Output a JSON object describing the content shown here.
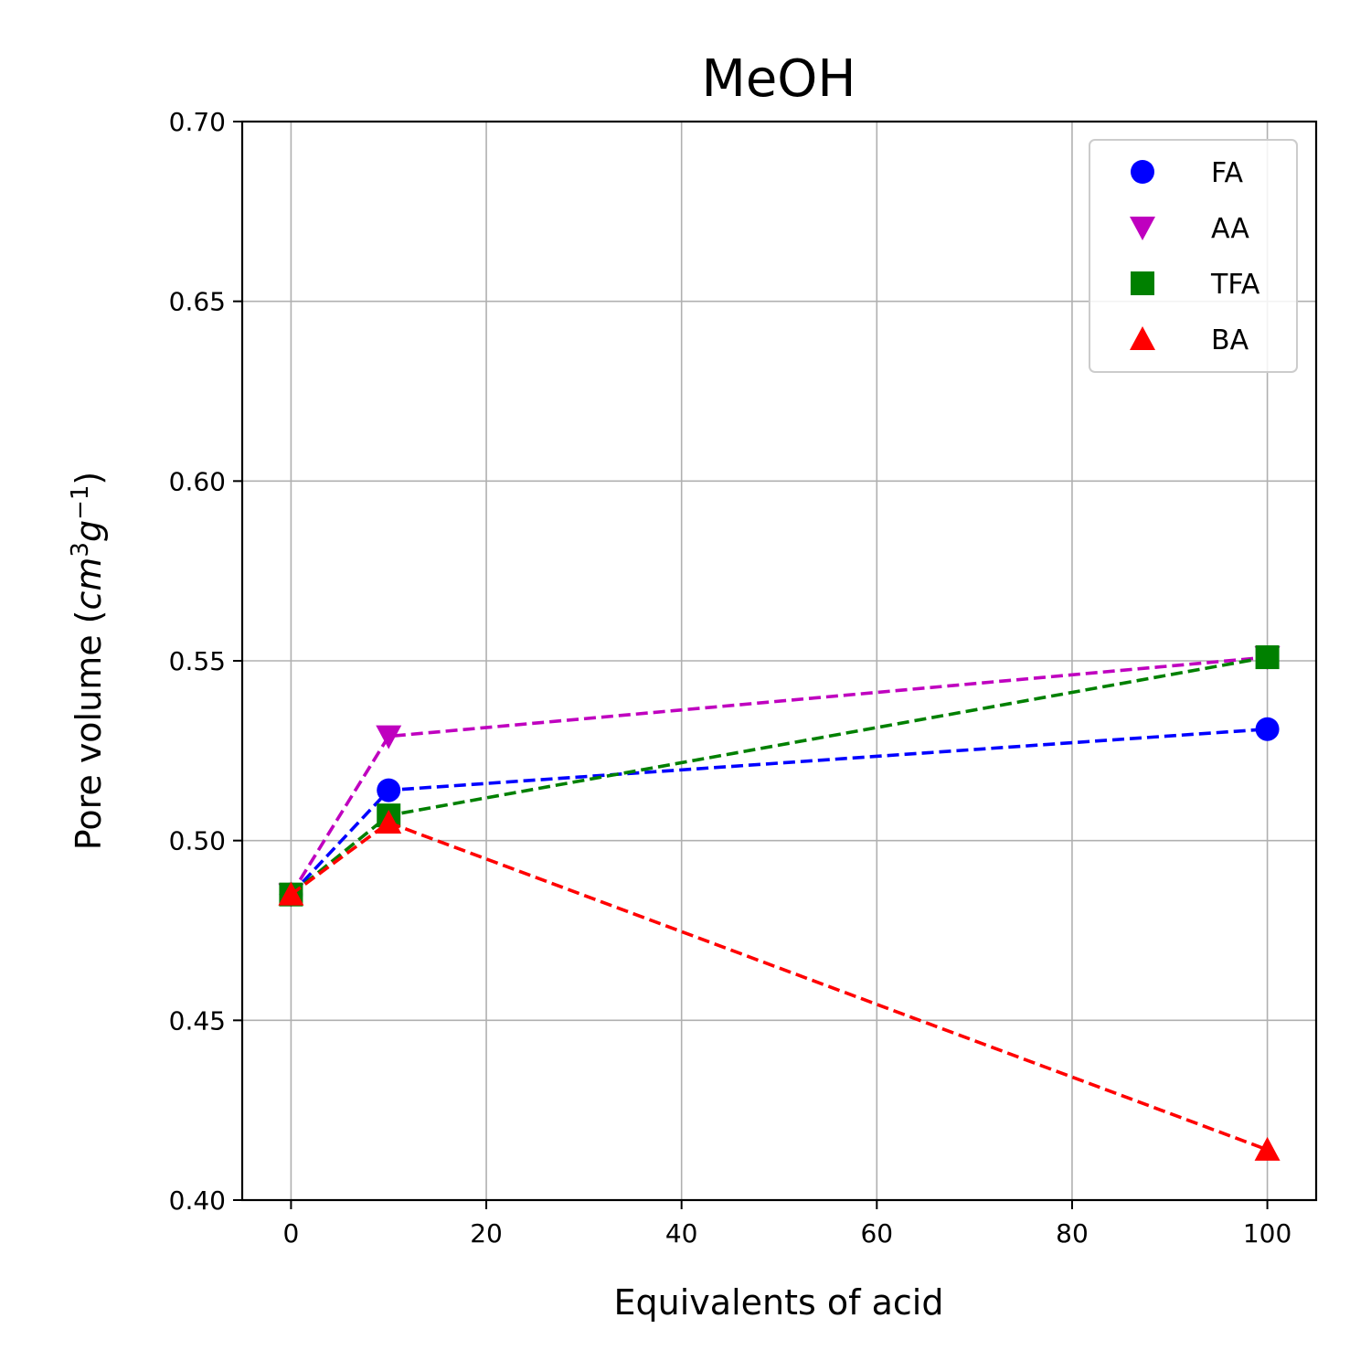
{
  "chart_data": {
    "type": "line",
    "title": "MeOH",
    "xlabel": "Equivalents of acid",
    "ylabel_main": "Pore volume (",
    "ylabel_unit_base1": "cm",
    "ylabel_unit_sup1": "3",
    "ylabel_unit_base2": "g",
    "ylabel_unit_sup2": "−1",
    "ylabel_close": ")",
    "xlim": [
      -5,
      105
    ],
    "ylim": [
      0.4,
      0.7
    ],
    "xticks": [
      0,
      20,
      40,
      60,
      80,
      100
    ],
    "xtick_labels": [
      "0",
      "20",
      "40",
      "60",
      "80",
      "100"
    ],
    "yticks": [
      0.4,
      0.45,
      0.5,
      0.55,
      0.6,
      0.65,
      0.7
    ],
    "ytick_labels": [
      "0.40",
      "0.45",
      "0.50",
      "0.55",
      "0.60",
      "0.65",
      "0.70"
    ],
    "grid": true,
    "legend_position": "top-right",
    "series": [
      {
        "name": "FA",
        "marker": "circle",
        "color": "#0000ff",
        "x": [
          0,
          10,
          100
        ],
        "y": [
          0.485,
          0.514,
          0.531
        ]
      },
      {
        "name": "AA",
        "marker": "triangle-down",
        "color": "#bf00bf",
        "x": [
          0,
          10,
          100
        ],
        "y": [
          0.485,
          0.529,
          0.551
        ]
      },
      {
        "name": "TFA",
        "marker": "square",
        "color": "#008000",
        "x": [
          0,
          10,
          100
        ],
        "y": [
          0.485,
          0.507,
          0.551
        ]
      },
      {
        "name": "BA",
        "marker": "triangle-up",
        "color": "#ff0000",
        "x": [
          0,
          10,
          100
        ],
        "y": [
          0.485,
          0.505,
          0.414
        ]
      }
    ]
  }
}
